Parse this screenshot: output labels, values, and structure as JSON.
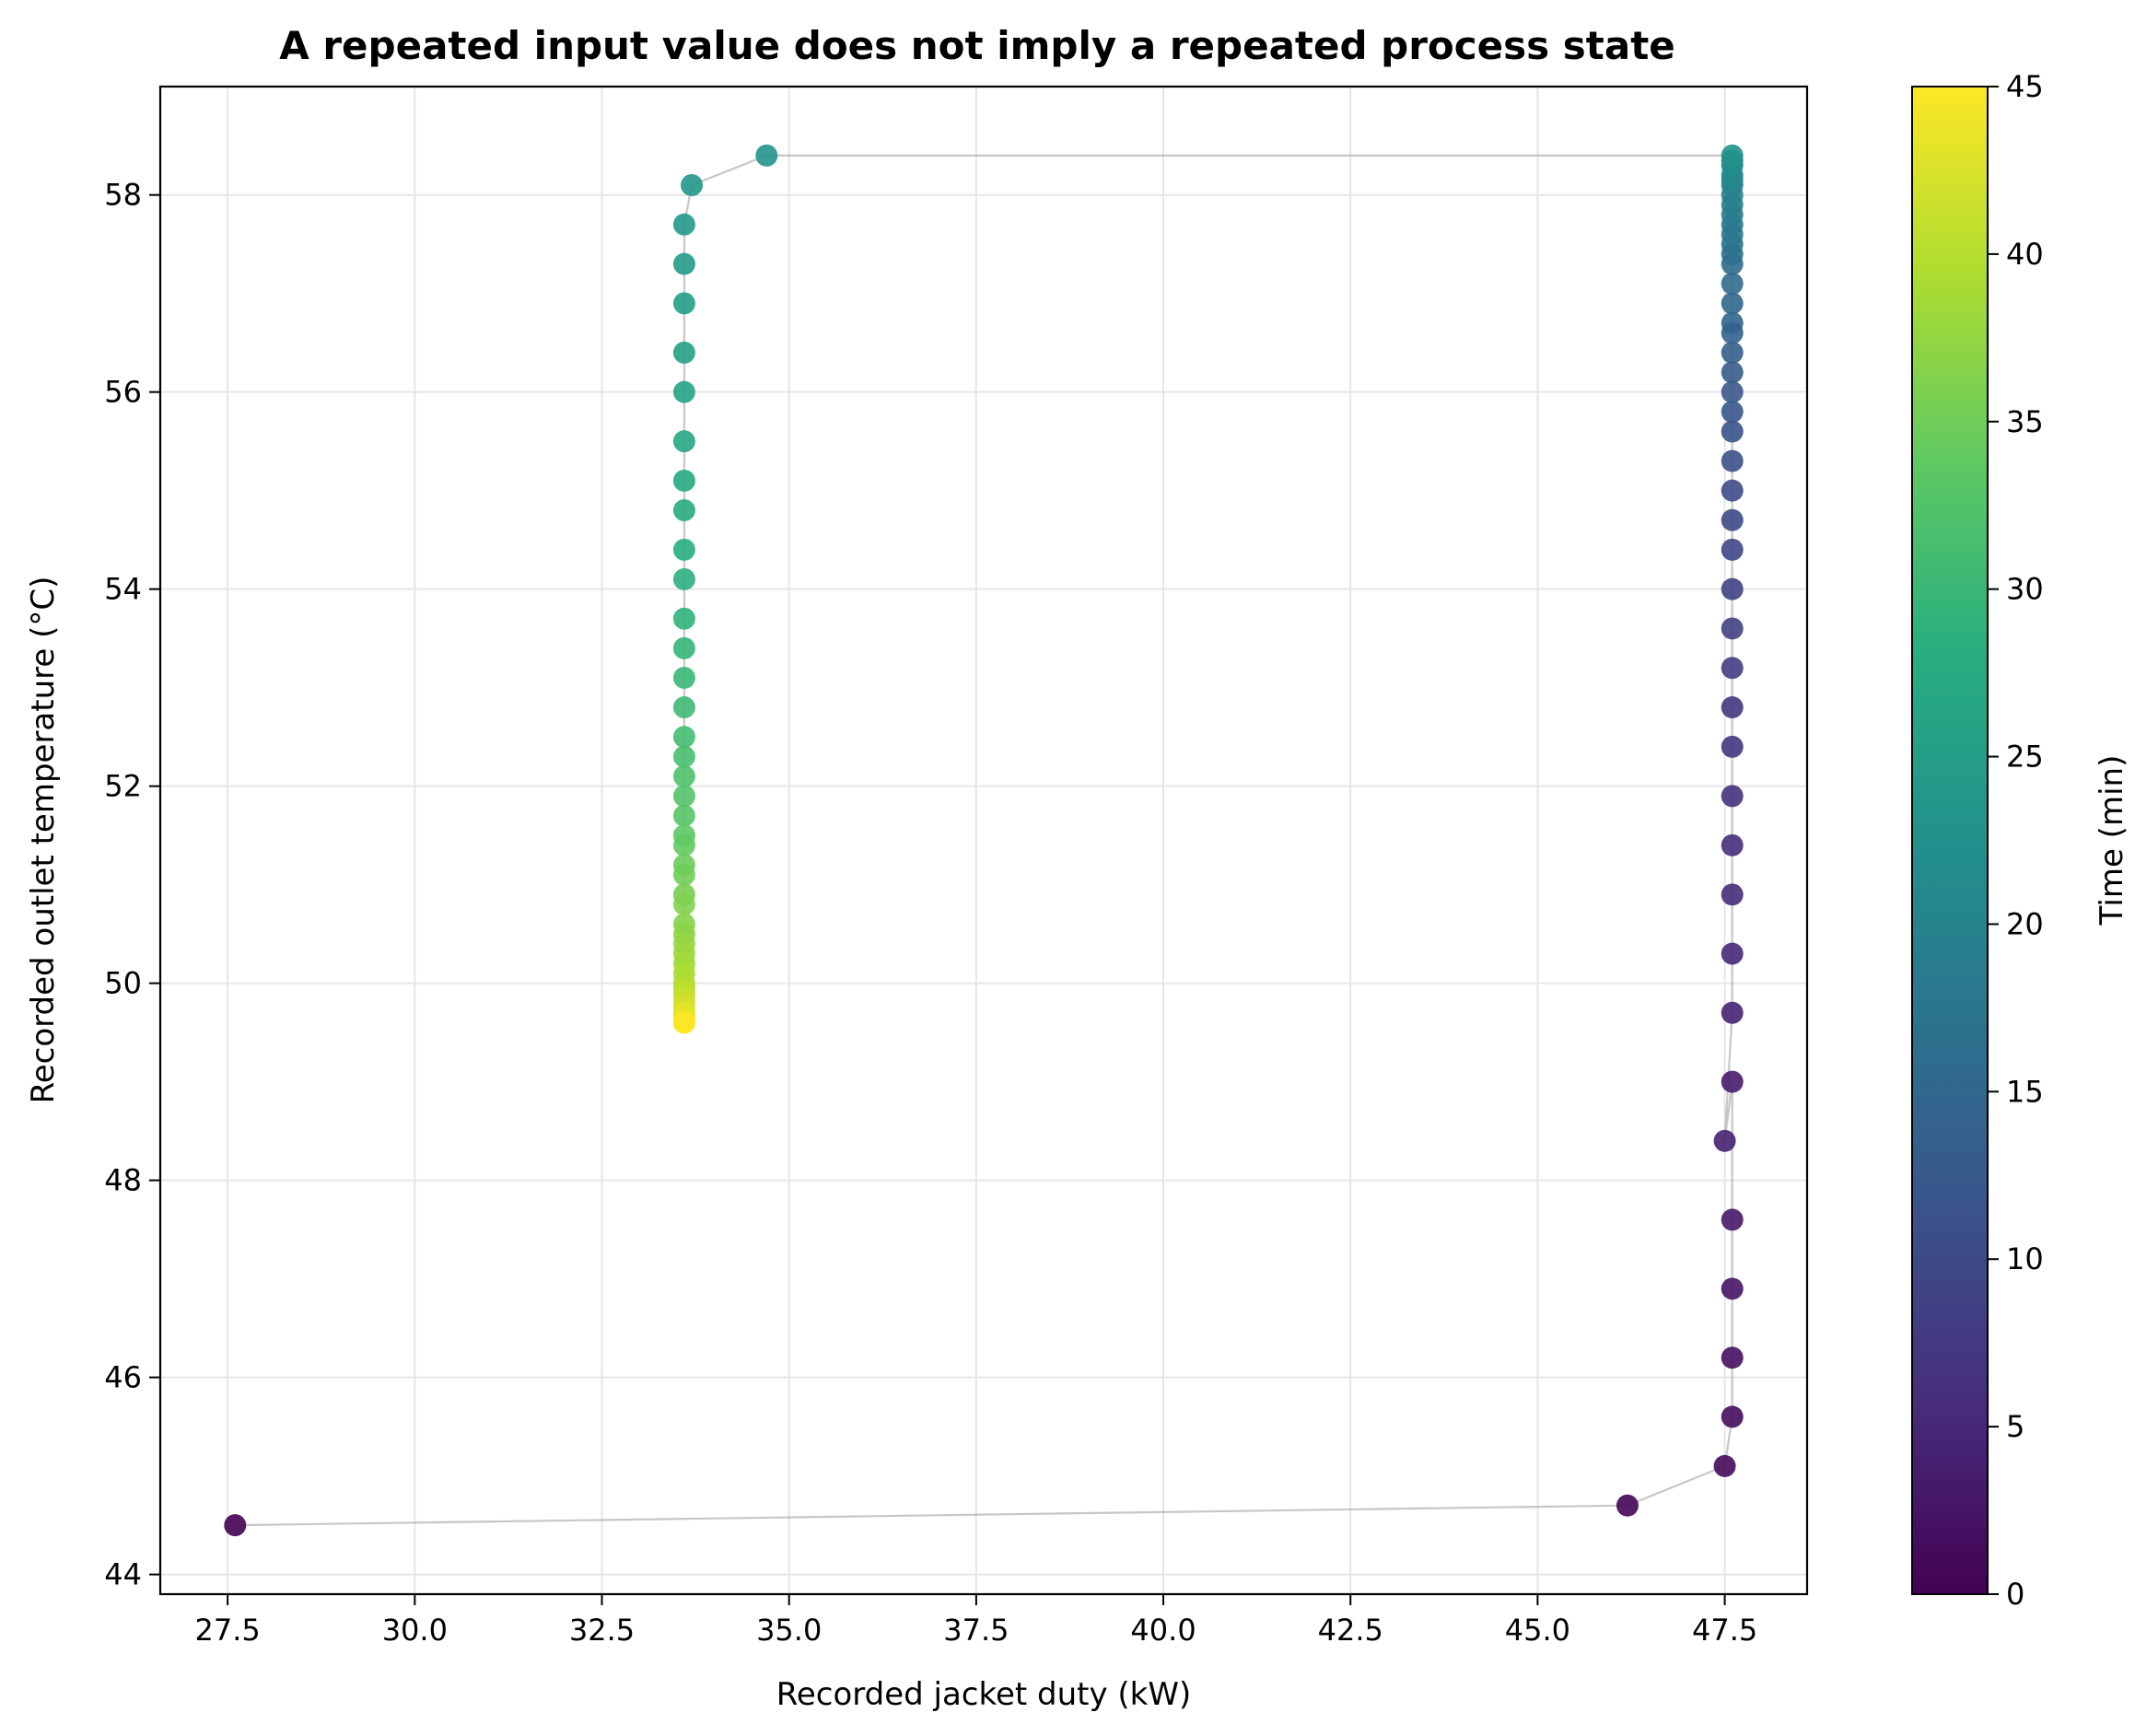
{
  "chart_data": {
    "type": "scatter",
    "title": "A repeated input value does not imply a repeated process state",
    "title_color": "#073763",
    "xlabel": "Recorded jacket duty (kW)",
    "ylabel": "Recorded outlet temperature (°C)",
    "xlim": [
      26.6,
      48.6
    ],
    "ylim": [
      43.8,
      59.1
    ],
    "xticks": [
      27.5,
      30.0,
      32.5,
      35.0,
      37.5,
      40.0,
      42.5,
      45.0,
      47.5
    ],
    "xtick_labels": [
      "27.5",
      "30.0",
      "32.5",
      "35.0",
      "37.5",
      "40.0",
      "42.5",
      "45.0",
      "47.5"
    ],
    "yticks": [
      44,
      46,
      48,
      50,
      52,
      54,
      56,
      58
    ],
    "ytick_labels": [
      "44",
      "46",
      "48",
      "50",
      "52",
      "54",
      "56",
      "58"
    ],
    "grid": true,
    "connecting_line": true,
    "colormap": "viridis",
    "colorbar": {
      "label": "Time (min)",
      "range": [
        0,
        45
      ],
      "ticks": [
        0,
        5,
        10,
        15,
        20,
        25,
        30,
        35,
        40,
        45
      ],
      "tick_labels": [
        "0",
        "5",
        "10",
        "15",
        "20",
        "25",
        "30",
        "35",
        "40",
        "45"
      ]
    },
    "series": [
      {
        "x": [
          27.6,
          46.2,
          47.5,
          47.6,
          47.6,
          47.6,
          47.6,
          47.6,
          47.5,
          47.6,
          47.6,
          47.6,
          47.6,
          47.6,
          47.6,
          47.6,
          47.6,
          47.6,
          47.6,
          47.6,
          47.6,
          47.6,
          47.6,
          47.6,
          47.6,
          47.6,
          47.6,
          47.6,
          47.6,
          47.6,
          47.6,
          47.6,
          47.6,
          47.6,
          47.6,
          47.6,
          47.6,
          47.6,
          47.6,
          47.6,
          47.6,
          47.6,
          47.6,
          47.6,
          47.6,
          47.6,
          34.7,
          33.7,
          33.6,
          33.6,
          33.6,
          33.6,
          33.6,
          33.6,
          33.6,
          33.6,
          33.6,
          33.6,
          33.6,
          33.6,
          33.6,
          33.6,
          33.6,
          33.6,
          33.6,
          33.6,
          33.6,
          33.6,
          33.6,
          33.6,
          33.6,
          33.6,
          33.6,
          33.6,
          33.6,
          33.6,
          33.6,
          33.6,
          33.6,
          33.6,
          33.6,
          33.6,
          33.6,
          33.6,
          33.6,
          33.6,
          33.6,
          33.6,
          33.6,
          33.6,
          33.6
        ],
        "y": [
          44.5,
          44.7,
          45.1,
          45.6,
          46.2,
          46.9,
          47.6,
          49.0,
          48.4,
          49.7,
          50.3,
          50.9,
          51.4,
          51.9,
          52.4,
          52.8,
          53.2,
          53.6,
          54.0,
          54.4,
          54.7,
          55.0,
          55.3,
          55.6,
          55.8,
          56.0,
          56.2,
          56.4,
          56.6,
          56.7,
          56.9,
          57.1,
          57.3,
          57.4,
          57.5,
          57.6,
          57.7,
          57.8,
          57.9,
          58.0,
          58.1,
          58.15,
          58.2,
          58.3,
          58.35,
          58.4,
          58.4,
          58.1,
          57.7,
          57.3,
          56.9,
          56.4,
          56.0,
          55.5,
          55.1,
          54.8,
          54.4,
          54.1,
          53.7,
          53.4,
          53.1,
          52.8,
          52.5,
          52.3,
          52.1,
          51.9,
          51.7,
          51.5,
          51.4,
          51.2,
          51.1,
          50.9,
          50.8,
          50.6,
          50.5,
          50.4,
          50.3,
          50.2,
          50.1,
          50.0,
          49.95,
          49.9,
          49.85,
          49.8,
          49.75,
          49.7,
          49.7,
          49.65,
          49.6,
          49.6,
          49.6
        ],
        "time": [
          0.0,
          0.5,
          1.0,
          1.5,
          2.0,
          2.5,
          3.0,
          3.5,
          4.0,
          4.5,
          5.0,
          5.5,
          6.0,
          6.5,
          7.0,
          7.5,
          8.0,
          8.5,
          9.0,
          9.5,
          10.0,
          10.5,
          11.0,
          11.5,
          12.0,
          12.5,
          13.0,
          13.5,
          14.0,
          14.5,
          15.0,
          15.5,
          16.0,
          16.5,
          17.0,
          17.5,
          18.0,
          18.5,
          19.0,
          19.5,
          20.0,
          20.5,
          21.0,
          21.5,
          22.0,
          22.5,
          23.0,
          23.5,
          24.0,
          24.5,
          25.0,
          25.5,
          26.0,
          26.5,
          27.0,
          27.5,
          28.0,
          28.5,
          29.0,
          29.5,
          30.0,
          30.5,
          31.0,
          31.5,
          32.0,
          32.5,
          33.0,
          33.5,
          34.0,
          34.5,
          35.0,
          35.5,
          36.0,
          36.5,
          37.0,
          37.5,
          38.0,
          38.5,
          39.0,
          39.5,
          40.0,
          40.5,
          41.0,
          41.5,
          42.0,
          42.5,
          43.0,
          43.5,
          44.0,
          44.5,
          45.0
        ]
      }
    ]
  }
}
